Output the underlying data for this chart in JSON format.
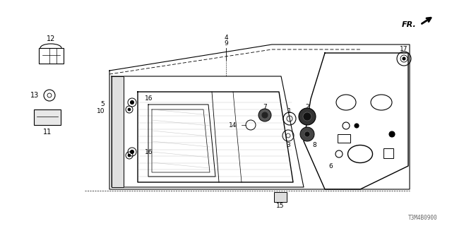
{
  "bg_color": "#ffffff",
  "lc": "#000000",
  "gc": "#aaaaaa",
  "diagram_id": "T3M4B0900",
  "figsize": [
    6.4,
    3.2
  ],
  "dpi": 100
}
